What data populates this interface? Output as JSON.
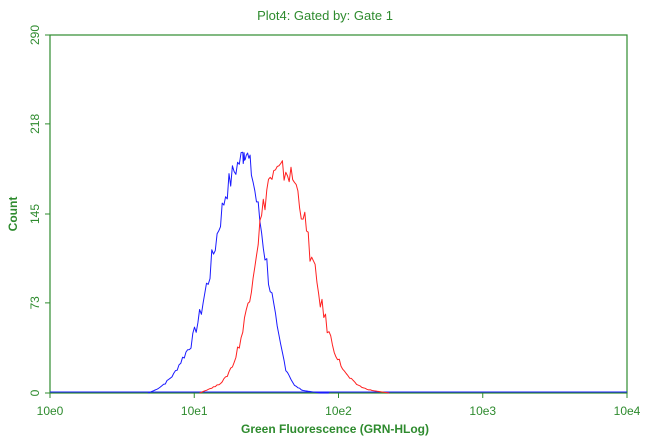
{
  "chart_data": {
    "type": "line",
    "title": "Plot4:  Gated by: Gate 1",
    "xlabel": "Green Fluorescence (GRN-HLog)",
    "ylabel": "Count",
    "x_scale": "log",
    "xlim": [
      1,
      10000
    ],
    "ylim": [
      0,
      290
    ],
    "x_ticks": [
      1,
      10,
      100,
      1000,
      10000
    ],
    "x_tick_labels": [
      "10e0",
      "10e1",
      "10e2",
      "10e3",
      "10e4"
    ],
    "y_ticks": [
      0,
      73,
      145,
      218,
      290
    ],
    "y_tick_labels": [
      "0",
      "73",
      "145",
      "218",
      "290"
    ],
    "grid": false,
    "legend": "none",
    "series": [
      {
        "color": "#1a1aff",
        "x": [
          4.8,
          5.5,
          6.3,
          7.2,
          8.3,
          9.5,
          10.9,
          12.5,
          14.4,
          16.5,
          18.9,
          21.7,
          22.5,
          24.9,
          28.5,
          32.7,
          37.6,
          43.1,
          49.5,
          56.8,
          65.2,
          74.8,
          85.9
        ],
        "y": [
          0,
          3,
          8,
          15,
          28,
          40,
          62,
          92,
          128,
          162,
          180,
          192,
          198,
          180,
          140,
          95,
          50,
          20,
          6,
          2,
          1,
          0,
          0
        ]
      },
      {
        "color": "#ff2020",
        "x": [
          10.9,
          12.5,
          14.4,
          16.5,
          18.9,
          21.7,
          24.9,
          28.5,
          32.7,
          37.6,
          43.1,
          49.5,
          56.8,
          65.2,
          74.8,
          85.9,
          98.6,
          113,
          130,
          149,
          171,
          196,
          225
        ],
        "y": [
          0,
          3,
          6,
          12,
          25,
          50,
          90,
          135,
          172,
          178,
          180,
          172,
          145,
          108,
          75,
          48,
          28,
          15,
          8,
          4,
          2,
          1,
          0
        ]
      }
    ]
  }
}
